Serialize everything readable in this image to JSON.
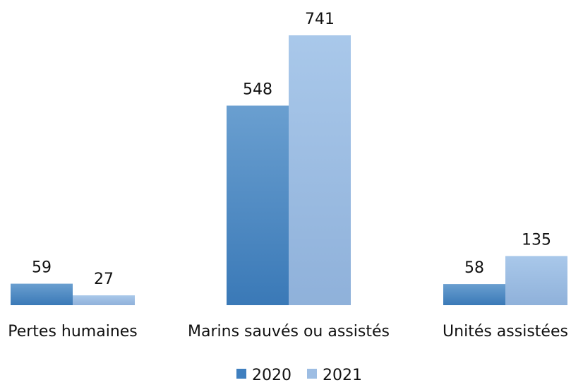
{
  "chart_data": {
    "type": "bar",
    "title": "",
    "xlabel": "",
    "ylabel": "",
    "categories": [
      "Pertes humaines",
      "Marins sauvés ou assistés",
      "Unités assistées"
    ],
    "series": [
      {
        "name": "2020",
        "values": [
          59,
          548,
          58
        ],
        "color": "#3f7fbf"
      },
      {
        "name": "2021",
        "values": [
          27,
          741,
          135
        ],
        "color": "#9dbde3"
      }
    ],
    "ylim": [
      0,
      800
    ],
    "grid": false,
    "legend": "bottom",
    "data_labels": true
  }
}
